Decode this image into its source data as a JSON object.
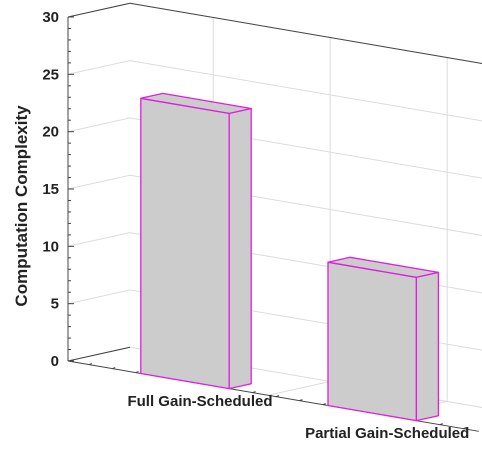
{
  "chart_data": {
    "type": "bar",
    "style": "3d",
    "categories": [
      "Full Gain-Scheduled",
      "Partial Gain-Scheduled"
    ],
    "values": [
      24,
      12.5
    ],
    "ylabel": "Computation Complexity",
    "xlabel": "",
    "title": "",
    "ylim": [
      0,
      30
    ],
    "yticks": [
      "0",
      "5",
      "10",
      "15",
      "20",
      "25",
      "30"
    ],
    "grid": true,
    "bar_face_color": "#cccccc",
    "bar_edge_color": "#e01ee0"
  }
}
